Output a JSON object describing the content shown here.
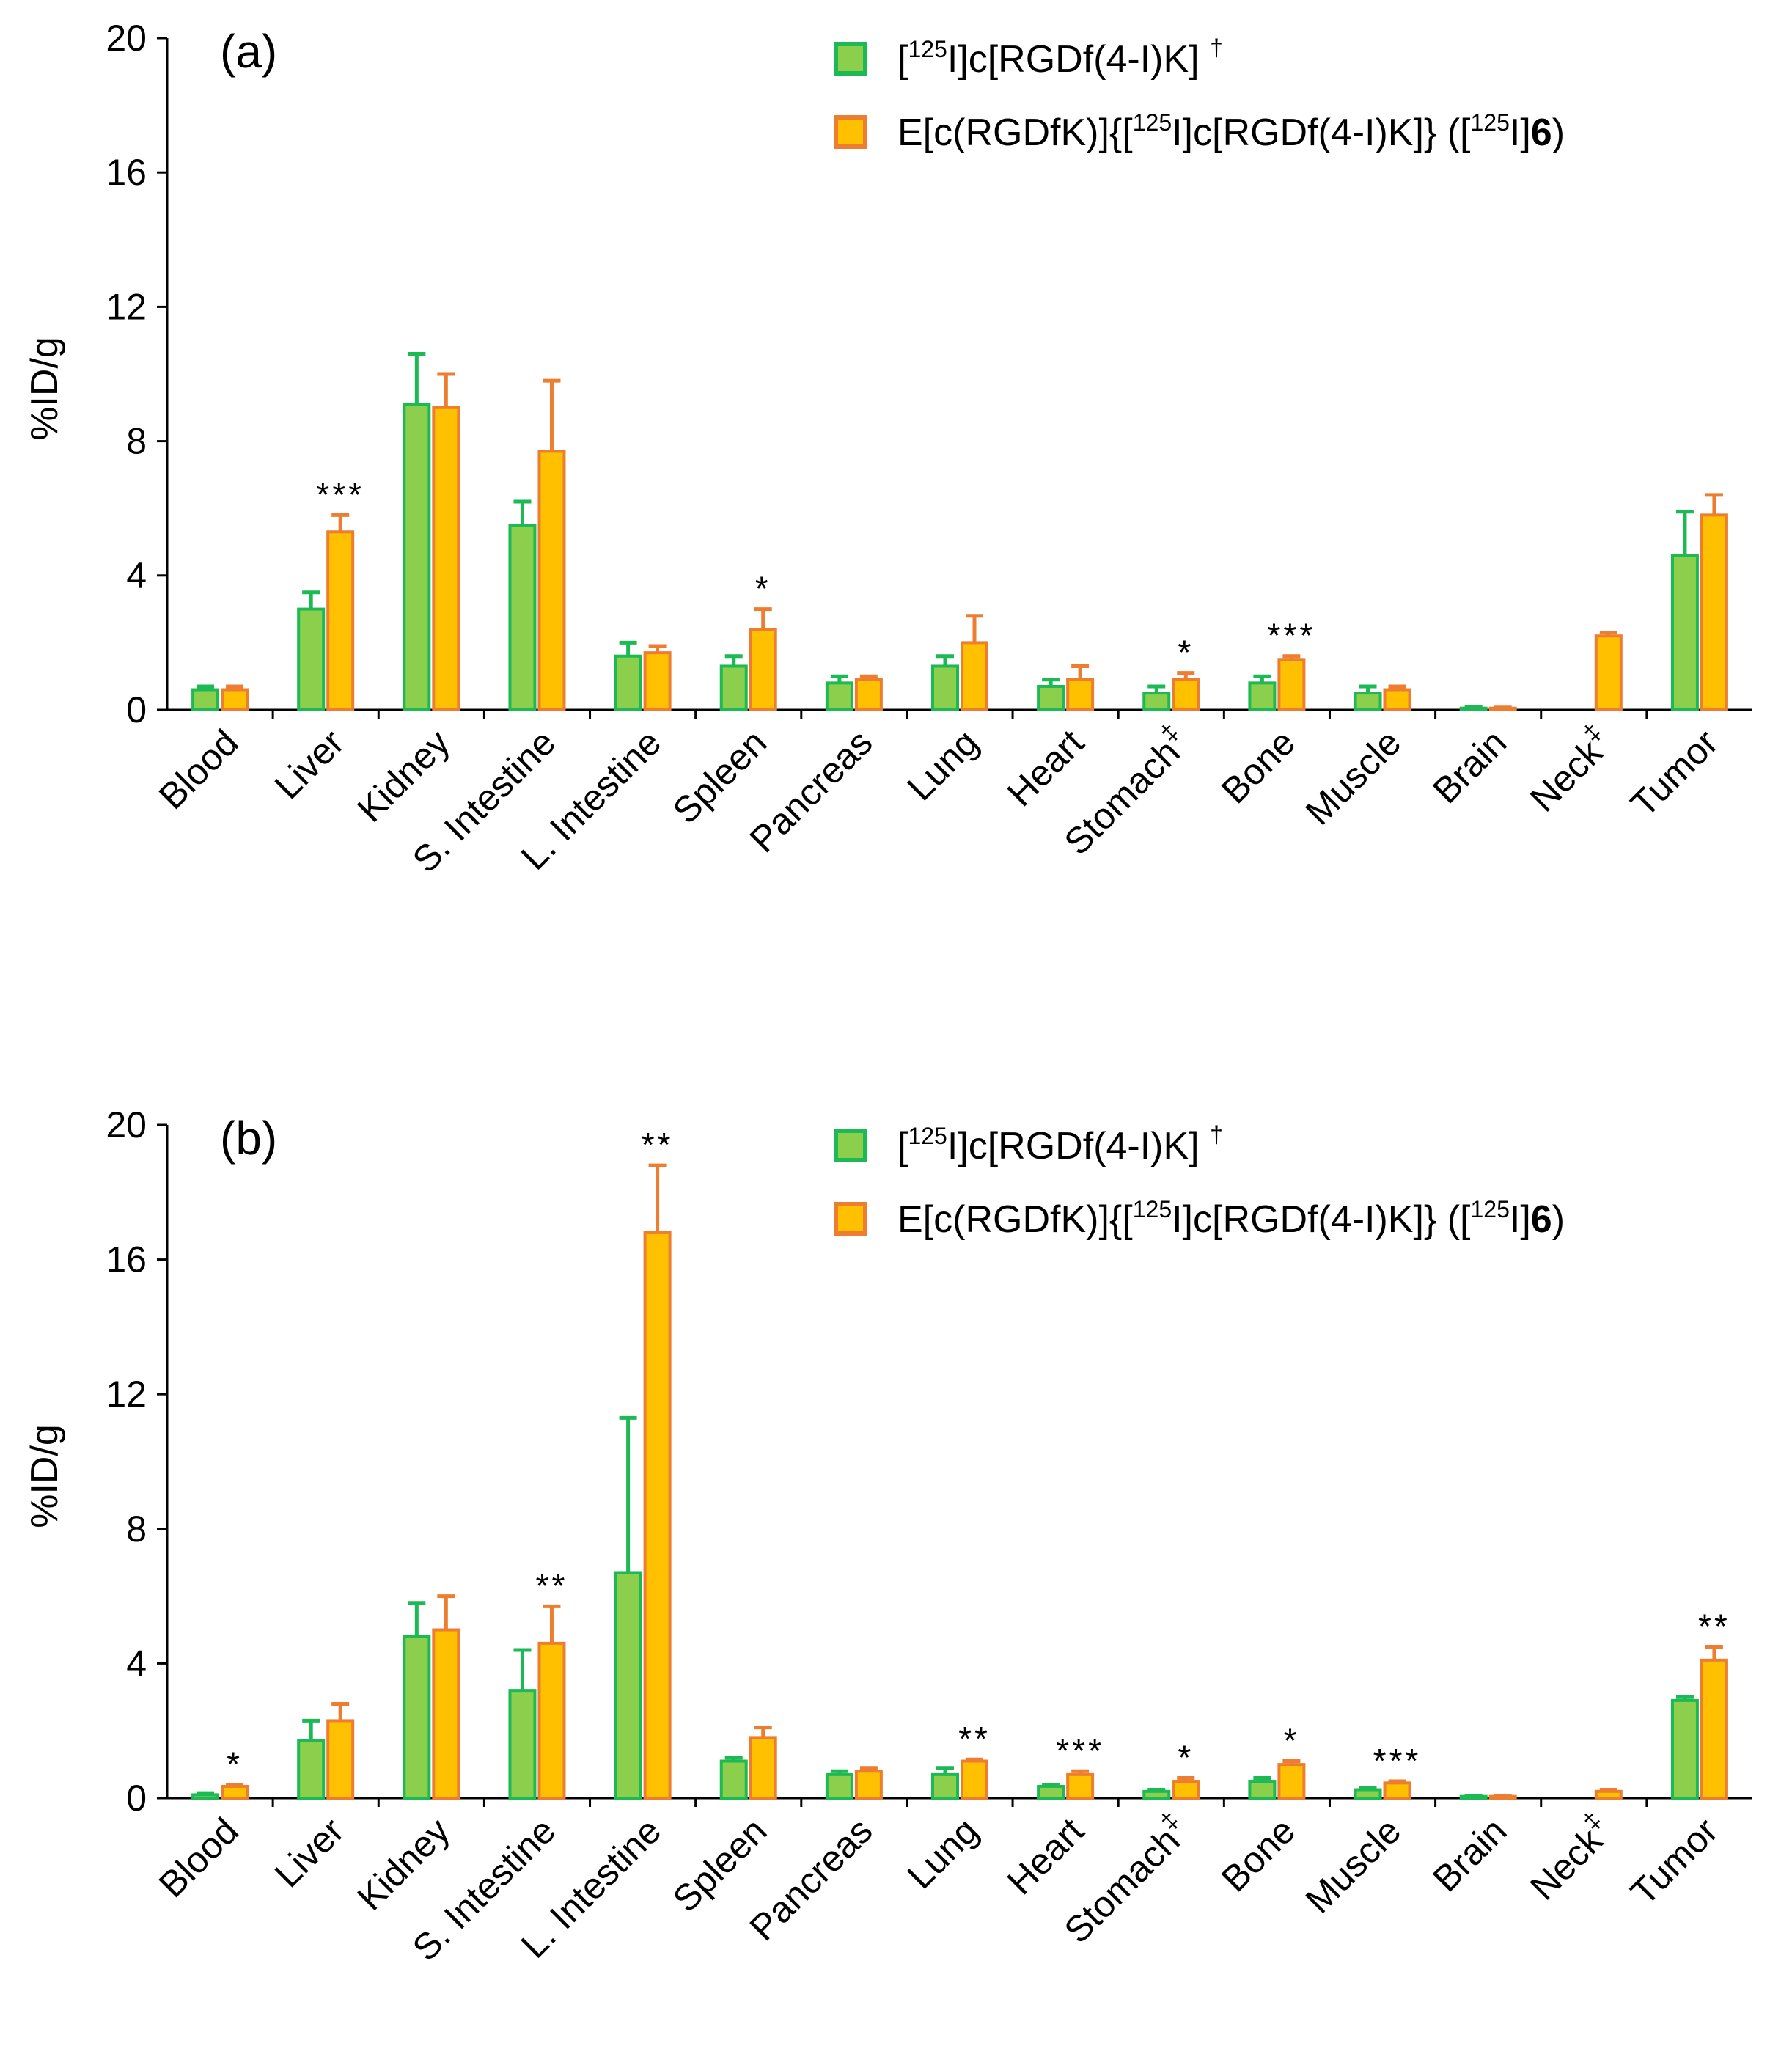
{
  "chart_data": [
    {
      "type": "bar",
      "panel_label": "(a)",
      "ylabel": "%ID/g",
      "ylim": [
        0,
        20
      ],
      "yticks": [
        "0",
        "4",
        "8",
        "12",
        "16",
        "20"
      ],
      "categories": [
        "Blood",
        "Liver",
        "Kidney",
        "S. Intestine",
        "L. Intestine",
        "Spleen",
        "Pancreas",
        "Lung",
        "Heart",
        "Stomach",
        "Bone",
        "Muscle",
        "Brain",
        "Neck",
        "Tumor"
      ],
      "category_marks": [
        "",
        "",
        "",
        "",
        "",
        "",
        "",
        "",
        "",
        "‡",
        "",
        "",
        "",
        "‡",
        ""
      ],
      "series": [
        {
          "name": "[125I]c[RGDf(4-I)K] †",
          "color": "#8ccf4d",
          "edge": "#1db954",
          "values": [
            0.6,
            3.0,
            9.1,
            5.5,
            1.6,
            1.3,
            0.8,
            1.3,
            0.7,
            0.5,
            0.8,
            0.5,
            0.05,
            null,
            4.6
          ],
          "errors": [
            0.1,
            0.5,
            1.5,
            0.7,
            0.4,
            0.3,
            0.2,
            0.3,
            0.2,
            0.2,
            0.2,
            0.2,
            0.03,
            null,
            1.3
          ]
        },
        {
          "name": "E[c(RGDfK)]{[125I]c[RGDf(4-I)K]} ([125I]6)",
          "color": "#ffc000",
          "edge": "#ed7d31",
          "values": [
            0.6,
            5.3,
            9.0,
            7.7,
            1.7,
            2.4,
            0.9,
            2.0,
            0.9,
            0.9,
            1.5,
            0.6,
            0.05,
            2.2,
            5.8
          ],
          "errors": [
            0.1,
            0.5,
            1.0,
            2.1,
            0.2,
            0.6,
            0.1,
            0.8,
            0.4,
            0.2,
            0.1,
            0.1,
            0.02,
            0.1,
            0.6
          ]
        }
      ],
      "significance": [
        "",
        "***",
        "",
        "",
        "",
        "*",
        "",
        "",
        "",
        "*",
        "***",
        "",
        "",
        "",
        ""
      ]
    },
    {
      "type": "bar",
      "panel_label": "(b)",
      "ylabel": "%ID/g",
      "ylim": [
        0,
        20
      ],
      "yticks": [
        "0",
        "4",
        "8",
        "12",
        "16",
        "20"
      ],
      "categories": [
        "Blood",
        "Liver",
        "Kidney",
        "S. Intestine",
        "L. Intestine",
        "Spleen",
        "Pancreas",
        "Lung",
        "Heart",
        "Stomach",
        "Bone",
        "Muscle",
        "Brain",
        "Neck",
        "Tumor"
      ],
      "category_marks": [
        "",
        "",
        "",
        "",
        "",
        "",
        "",
        "",
        "",
        "‡",
        "",
        "",
        "",
        "‡",
        ""
      ],
      "series": [
        {
          "name": "[125I]c[RGDf(4-I)K] †",
          "color": "#8ccf4d",
          "edge": "#1db954",
          "values": [
            0.1,
            1.7,
            4.8,
            3.2,
            6.7,
            1.1,
            0.7,
            0.7,
            0.35,
            0.2,
            0.5,
            0.25,
            0.05,
            null,
            2.9
          ],
          "errors": [
            0.05,
            0.6,
            1.0,
            1.2,
            4.6,
            0.1,
            0.1,
            0.2,
            0.05,
            0.05,
            0.1,
            0.05,
            0.02,
            null,
            0.1
          ]
        },
        {
          "name": "E[c(RGDfK)]{[125I]c[RGDf(4-I)K]} ([125I]6)",
          "color": "#ffc000",
          "edge": "#ed7d31",
          "values": [
            0.35,
            2.3,
            5.0,
            4.6,
            16.8,
            1.8,
            0.8,
            1.1,
            0.7,
            0.5,
            1.0,
            0.45,
            0.05,
            0.2,
            4.1
          ],
          "errors": [
            0.05,
            0.5,
            1.0,
            1.1,
            2.0,
            0.3,
            0.1,
            0.05,
            0.1,
            0.1,
            0.1,
            0.05,
            0.02,
            0.05,
            0.4
          ]
        }
      ],
      "significance": [
        "*",
        "",
        "",
        "**",
        "**",
        "",
        "",
        "**",
        "***",
        "*",
        "*",
        "***",
        "",
        "",
        "**"
      ]
    }
  ],
  "legend": {
    "series1": {
      "prefix": "[",
      "sup1": "125",
      "mid": "I]c[RGDf(4-I)K] ",
      "dagger": "†"
    },
    "series2": {
      "prefix": "E[c(RGDfK)]{[",
      "sup1": "125",
      "mid": "I]c[RGDf(4-I)K]} ([",
      "sup2": "125",
      "mid2": "I]",
      "bold": "6",
      "suffix": ")"
    }
  }
}
